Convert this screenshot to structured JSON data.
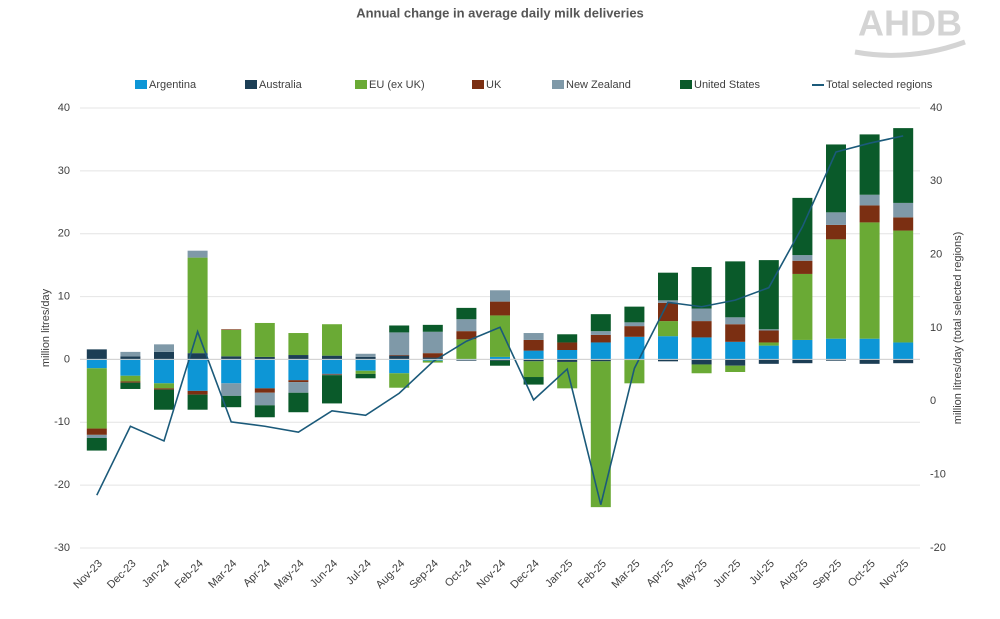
{
  "chart_data": {
    "type": "bar",
    "title": "Annual change in average daily milk deliveries",
    "logo": "AHDB",
    "y_label": "million litres/day",
    "y2_label": "million litres/day (total selected regions)",
    "categories": [
      "Nov-23",
      "Dec-23",
      "Jan-24",
      "Feb-24",
      "Mar-24",
      "Apr-24",
      "May-24",
      "Jun-24",
      "Jul-24",
      "Aug-24",
      "Sep-24",
      "Oct-24",
      "Nov-24",
      "Dec-24",
      "Jan-25",
      "Feb-25",
      "Mar-25",
      "Apr-25",
      "May-25",
      "Jun-25",
      "Jul-25",
      "Aug-25",
      "Sep-25",
      "Oct-25",
      "Nov-25"
    ],
    "series": [
      {
        "name": "Argentina",
        "color": "#0d96d6",
        "values": [
          -1.4,
          -2.6,
          -3.8,
          -5,
          -3.8,
          -4.6,
          -3.3,
          -2.3,
          -1.8,
          -2.2,
          -0.2,
          -0.1,
          0.4,
          1.4,
          1.5,
          2.7,
          3.6,
          3.7,
          3.5,
          2.8,
          2.2,
          3.1,
          3.3,
          3.3,
          2.7
        ]
      },
      {
        "name": "Australia",
        "color": "#1c3e55",
        "values": [
          1.6,
          0.5,
          1.2,
          1.0,
          0.5,
          0.4,
          0.7,
          0.6,
          0.4,
          0.6,
          0.3,
          -0.1,
          -0.2,
          -0.3,
          -0.4,
          -0.3,
          -0.1,
          -0.3,
          -0.8,
          -1.0,
          -0.7,
          -0.6,
          -0.2,
          -0.7,
          -0.6
        ]
      },
      {
        "name": "EU (ex UK)",
        "color": "#6aaa35",
        "values": [
          -9.6,
          -0.9,
          -0.8,
          15.2,
          4.2,
          5.4,
          3.5,
          5.0,
          -0.5,
          -2.3,
          -0.3,
          3.2,
          6.6,
          -2.5,
          -4.2,
          -23.2,
          -3.7,
          2.4,
          -1.4,
          -1.0,
          0.5,
          10.5,
          15.8,
          18.5,
          17.8
        ]
      },
      {
        "name": "UK",
        "color": "#7b2f12",
        "values": [
          -1.0,
          -0.2,
          -0.2,
          -0.6,
          0.1,
          -0.7,
          -0.3,
          -0.1,
          0,
          0.1,
          0.7,
          1.3,
          2.2,
          1.7,
          1.2,
          1.2,
          1.7,
          2.9,
          2.6,
          2.8,
          1.9,
          2.1,
          2.3,
          2.7,
          2.1
        ]
      },
      {
        "name": "New Zealand",
        "color": "#7f99a8",
        "values": [
          -0.5,
          0.7,
          1.2,
          1.1,
          -2.0,
          -2.0,
          -1.7,
          -0.1,
          0.5,
          3.6,
          3.4,
          1.9,
          1.8,
          1.1,
          0,
          0.6,
          0.6,
          0.4,
          2.0,
          1.1,
          0.2,
          0.9,
          2.0,
          1.7,
          2.3
        ]
      },
      {
        "name": "United States",
        "color": "#0a5a2a",
        "values": [
          -2.0,
          -1.0,
          -3.2,
          -2.4,
          -1.8,
          -1.9,
          -3.1,
          -4.5,
          -0.7,
          1.1,
          1.1,
          1.8,
          -0.8,
          -1.2,
          1.3,
          2.7,
          2.5,
          4.4,
          6.6,
          8.9,
          11.0,
          9.1,
          10.8,
          9.6,
          11.9
        ]
      },
      {
        "name": "Total selected regions",
        "color": "#1b5a7a",
        "type": "line",
        "axis": "y2",
        "values": [
          -12.8,
          -3.4,
          -5.4,
          9.5,
          -2.8,
          -3.4,
          -4.2,
          -1.3,
          -1.9,
          1.1,
          5.4,
          8.2,
          10.1,
          0.2,
          4.4,
          -14.1,
          4.5,
          13.5,
          12.9,
          13.8,
          15.5,
          23.8,
          34,
          35.2,
          36.2
        ]
      }
    ],
    "ylim": [
      -30,
      40
    ],
    "yticks": [
      -30,
      -20,
      -10,
      0,
      10,
      20,
      30,
      40
    ],
    "y2lim": [
      -20,
      40
    ],
    "y2ticks": [
      -20,
      -10,
      0,
      10,
      20,
      30,
      40
    ],
    "stacked": true,
    "grid": true,
    "legend": "top"
  }
}
